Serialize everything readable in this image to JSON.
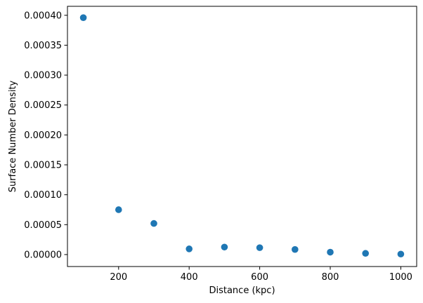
{
  "chart_data": {
    "type": "scatter",
    "xlabel": "Distance (kpc)",
    "ylabel": "Surface Number Density",
    "xlim": [
      55,
      1045
    ],
    "ylim": [
      -2e-05,
      0.000415
    ],
    "xticks": [
      200,
      400,
      600,
      800,
      1000
    ],
    "xtick_labels": [
      "200",
      "400",
      "600",
      "800",
      "1000"
    ],
    "yticks": [
      0,
      5e-05,
      0.0001,
      0.00015,
      0.0002,
      0.00025,
      0.0003,
      0.00035,
      0.0004
    ],
    "ytick_labels": [
      "0.00000",
      "0.00005",
      "0.00010",
      "0.00015",
      "0.00020",
      "0.00025",
      "0.00030",
      "0.00035",
      "0.00040"
    ],
    "grid": false,
    "legend": "none",
    "marker_color": "#1f77b4",
    "series": [
      {
        "x": [
          100,
          200,
          300,
          400,
          500,
          600,
          700,
          800,
          900,
          1000
        ],
        "y": [
          0.000396,
          7.5e-05,
          5.2e-05,
          9.5e-06,
          1.25e-05,
          1.15e-05,
          8.5e-06,
          4e-06,
          2e-06,
          8e-07
        ]
      }
    ]
  }
}
